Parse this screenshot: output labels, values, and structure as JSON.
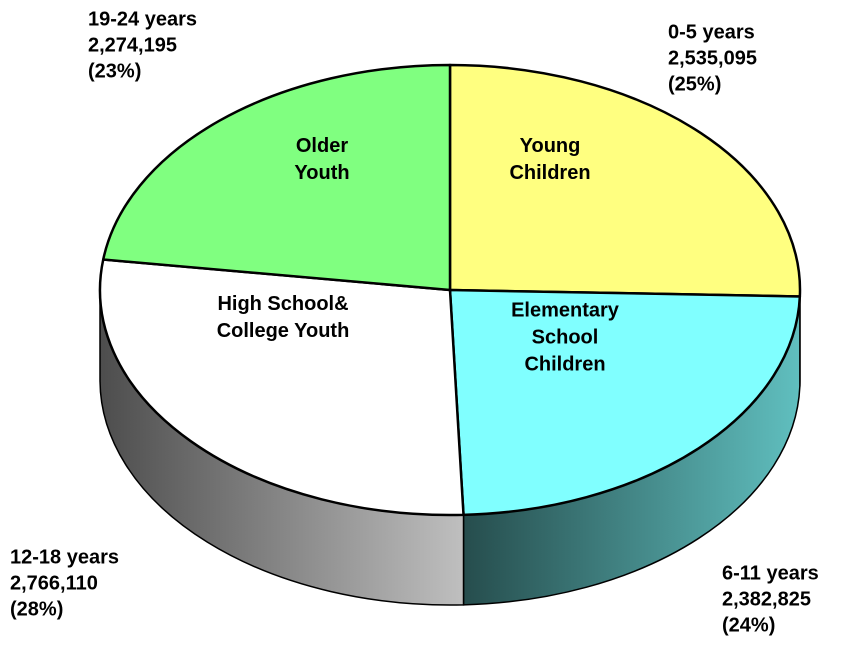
{
  "chart_data": {
    "type": "pie",
    "categories": [
      "0-5 years",
      "6-11 years",
      "12-18 years",
      "19-24 years"
    ],
    "values": [
      2535095,
      2382825,
      2766110,
      2274195
    ],
    "value_labels": [
      "2,535,095",
      "2,382,825",
      "2,766,110",
      "2,274,195"
    ],
    "percent_labels": [
      "(25%)",
      "(24%)",
      "(28%)",
      "(23%)"
    ],
    "slice_names": [
      [
        "Young",
        "Children"
      ],
      [
        "Elementary",
        "School",
        "Children"
      ],
      [
        "High School&",
        "College Youth"
      ],
      [
        "Older",
        "Youth"
      ]
    ],
    "colors": [
      "#ffff80",
      "#80ffff",
      "#ffffff",
      "#80ff80"
    ]
  }
}
